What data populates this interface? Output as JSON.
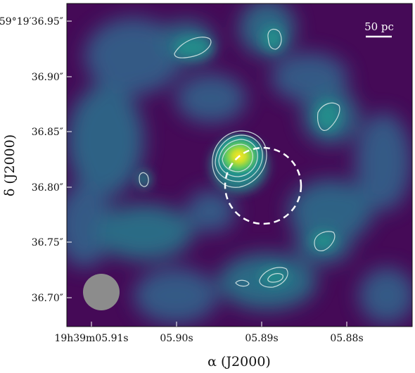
{
  "figure": {
    "colormap": [
      "#440154",
      "#3b528b",
      "#21918c",
      "#5ec962",
      "#fde725"
    ],
    "background_color": "#450a57",
    "contour_color": "#d6e6e6",
    "circle_color": "#ffffff",
    "beam_color": "#8c8c8c",
    "scalebar": {
      "label": "50 pc"
    }
  },
  "axes": {
    "y_ticks": [
      {
        "main": "59°19′36.95″"
      },
      {
        "main": "36.90″"
      },
      {
        "main": "36.85″"
      },
      {
        "main": "36.80″"
      },
      {
        "main": "36.75″"
      },
      {
        "main": "36.70″"
      }
    ],
    "x_ticks": [
      {
        "main": "19h39m05.91s"
      },
      {
        "main": "05.90s"
      },
      {
        "main": "05.89s"
      },
      {
        "main": "05.88s"
      }
    ],
    "y_label": "δ (J2000)",
    "x_label": "α (J2000)"
  }
}
